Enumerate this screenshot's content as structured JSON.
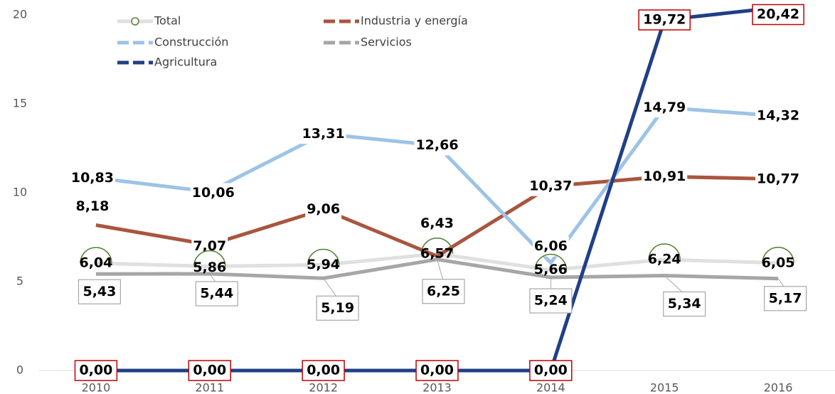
{
  "chart_data": {
    "type": "line",
    "categories": [
      "2010",
      "2011",
      "2012",
      "2013",
      "2014",
      "2015",
      "2016"
    ],
    "ylim": [
      0,
      20
    ],
    "yticks": [
      0,
      5,
      10,
      15,
      20
    ],
    "series": [
      {
        "name": "Total",
        "color": "#e0e0e0",
        "values": [
          6.04,
          5.86,
          5.94,
          6.57,
          5.66,
          6.24,
          6.05
        ],
        "value_labels": [
          "6,04",
          "5,86",
          "5,94",
          "6,57",
          "5,66",
          "6,24",
          "6,05"
        ]
      },
      {
        "name": "Industria y energía",
        "color": "#a9553f",
        "values": [
          8.18,
          7.07,
          9.06,
          6.43,
          10.37,
          10.91,
          10.77
        ],
        "value_labels": [
          "8,18",
          "7,07",
          "9,06",
          "6,43",
          "10,37",
          "10,91",
          "10,77"
        ]
      },
      {
        "name": "Construcción",
        "color": "#9dc3e6",
        "values": [
          10.83,
          10.06,
          13.31,
          12.66,
          6.06,
          14.79,
          14.32
        ],
        "value_labels": [
          "10,83",
          "10,06",
          "13,31",
          "12,66",
          "6,06",
          "14,79",
          "14,32"
        ]
      },
      {
        "name": "Servicios",
        "color": "#a6a6a6",
        "values": [
          5.43,
          5.44,
          5.19,
          6.25,
          5.24,
          5.34,
          5.17
        ],
        "value_labels": [
          "5,43",
          "5,44",
          "5,19",
          "6,25",
          "5,24",
          "5,34",
          "5,17"
        ]
      },
      {
        "name": "Agricultura",
        "color": "#203f86",
        "values": [
          0,
          0,
          0,
          0,
          0,
          19.72,
          20.42
        ],
        "value_labels": [
          "0,00",
          "0,00",
          "0,00",
          "0,00",
          "0,00",
          "19,72",
          "20,42"
        ]
      }
    ]
  }
}
